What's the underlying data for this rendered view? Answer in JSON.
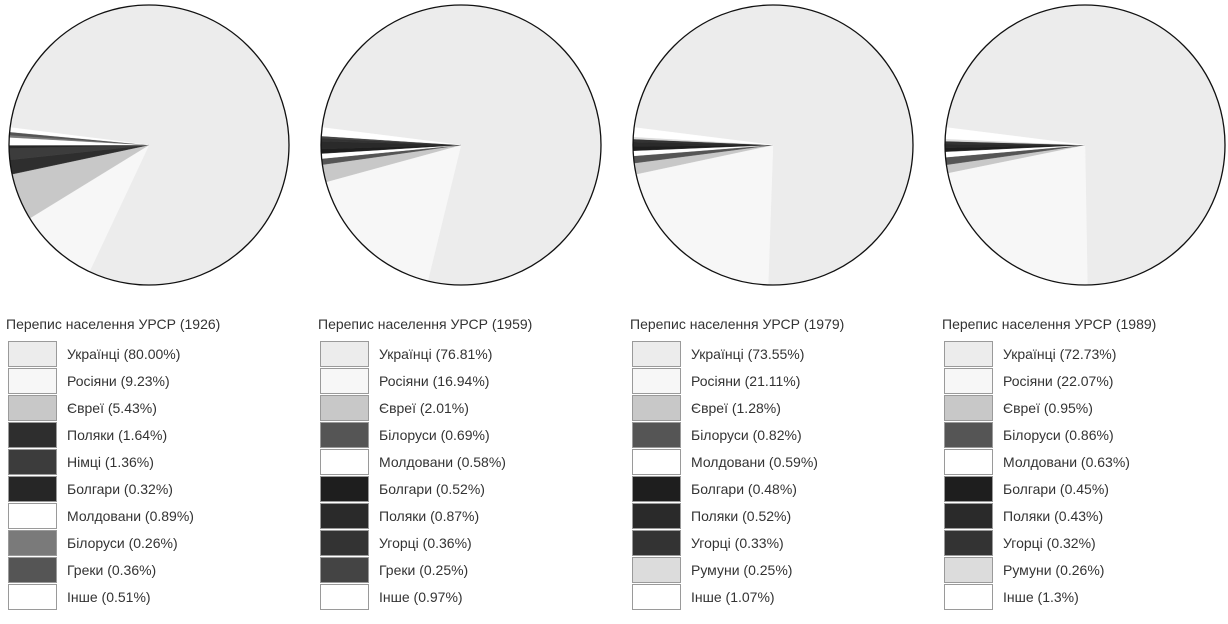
{
  "chart_data": [
    {
      "type": "pie",
      "title": "Перепис населення УРСР (1926)",
      "slices": [
        {
          "label": "Українці (80.00%)",
          "value": 80.0,
          "color": "#ececec"
        },
        {
          "label": "Росіяни (9.23%)",
          "value": 9.23,
          "color": "#f7f7f7"
        },
        {
          "label": "Євреї (5.43%)",
          "value": 5.43,
          "color": "#c8c8c8"
        },
        {
          "label": "Поляки (1.64%)",
          "value": 1.64,
          "color": "#2e2e2e"
        },
        {
          "label": "Німці (1.36%)",
          "value": 1.36,
          "color": "#3c3c3c"
        },
        {
          "label": "Болгари (0.32%)",
          "value": 0.32,
          "color": "#262626"
        },
        {
          "label": "Молдовани (0.89%)",
          "value": 0.89,
          "color": "#ffffff"
        },
        {
          "label": "Білоруси (0.26%)",
          "value": 0.26,
          "color": "#7a7a7a"
        },
        {
          "label": "Греки (0.36%)",
          "value": 0.36,
          "color": "#555555"
        },
        {
          "label": "Інше (0.51%)",
          "value": 0.51,
          "color": "#ffffff"
        }
      ]
    },
    {
      "type": "pie",
      "title": "Перепис населення УРСР (1959)",
      "slices": [
        {
          "label": "Українці (76.81%)",
          "value": 76.81,
          "color": "#ececec"
        },
        {
          "label": "Росіяни (16.94%)",
          "value": 16.94,
          "color": "#f7f7f7"
        },
        {
          "label": "Євреї (2.01%)",
          "value": 2.01,
          "color": "#c8c8c8"
        },
        {
          "label": "Білоруси (0.69%)",
          "value": 0.69,
          "color": "#555555"
        },
        {
          "label": "Молдовани (0.58%)",
          "value": 0.58,
          "color": "#ffffff"
        },
        {
          "label": "Болгари (0.52%)",
          "value": 0.52,
          "color": "#1e1e1e"
        },
        {
          "label": "Поляки (0.87%)",
          "value": 0.87,
          "color": "#2a2a2a"
        },
        {
          "label": "Угорці (0.36%)",
          "value": 0.36,
          "color": "#333333"
        },
        {
          "label": "Греки (0.25%)",
          "value": 0.25,
          "color": "#444444"
        },
        {
          "label": "Інше (0.97%)",
          "value": 0.97,
          "color": "#ffffff"
        }
      ]
    },
    {
      "type": "pie",
      "title": "Перепис населення УРСР (1979)",
      "slices": [
        {
          "label": "Українці (73.55%)",
          "value": 73.55,
          "color": "#ececec"
        },
        {
          "label": "Росіяни (21.11%)",
          "value": 21.11,
          "color": "#f7f7f7"
        },
        {
          "label": "Євреї (1.28%)",
          "value": 1.28,
          "color": "#c8c8c8"
        },
        {
          "label": "Білоруси (0.82%)",
          "value": 0.82,
          "color": "#555555"
        },
        {
          "label": "Молдовани (0.59%)",
          "value": 0.59,
          "color": "#ffffff"
        },
        {
          "label": "Болгари (0.48%)",
          "value": 0.48,
          "color": "#1e1e1e"
        },
        {
          "label": "Поляки (0.52%)",
          "value": 0.52,
          "color": "#2a2a2a"
        },
        {
          "label": "Угорці (0.33%)",
          "value": 0.33,
          "color": "#333333"
        },
        {
          "label": "Румуни (0.25%)",
          "value": 0.25,
          "color": "#dcdcdc"
        },
        {
          "label": "Інше (1.07%)",
          "value": 1.07,
          "color": "#ffffff"
        }
      ]
    },
    {
      "type": "pie",
      "title": "Перепис населення УРСР (1989)",
      "slices": [
        {
          "label": "Українці (72.73%)",
          "value": 72.73,
          "color": "#ececec"
        },
        {
          "label": "Росіяни (22.07%)",
          "value": 22.07,
          "color": "#f7f7f7"
        },
        {
          "label": "Євреї (0.95%)",
          "value": 0.95,
          "color": "#c8c8c8"
        },
        {
          "label": "Білоруси (0.86%)",
          "value": 0.86,
          "color": "#555555"
        },
        {
          "label": "Молдовани (0.63%)",
          "value": 0.63,
          "color": "#ffffff"
        },
        {
          "label": "Болгари (0.45%)",
          "value": 0.45,
          "color": "#1e1e1e"
        },
        {
          "label": "Поляки (0.43%)",
          "value": 0.43,
          "color": "#2a2a2a"
        },
        {
          "label": "Угорці (0.32%)",
          "value": 0.32,
          "color": "#333333"
        },
        {
          "label": "Румуни (0.26%)",
          "value": 0.26,
          "color": "#dcdcdc"
        },
        {
          "label": "Інше (1.3%)",
          "value": 1.3,
          "color": "#ffffff"
        }
      ]
    }
  ]
}
